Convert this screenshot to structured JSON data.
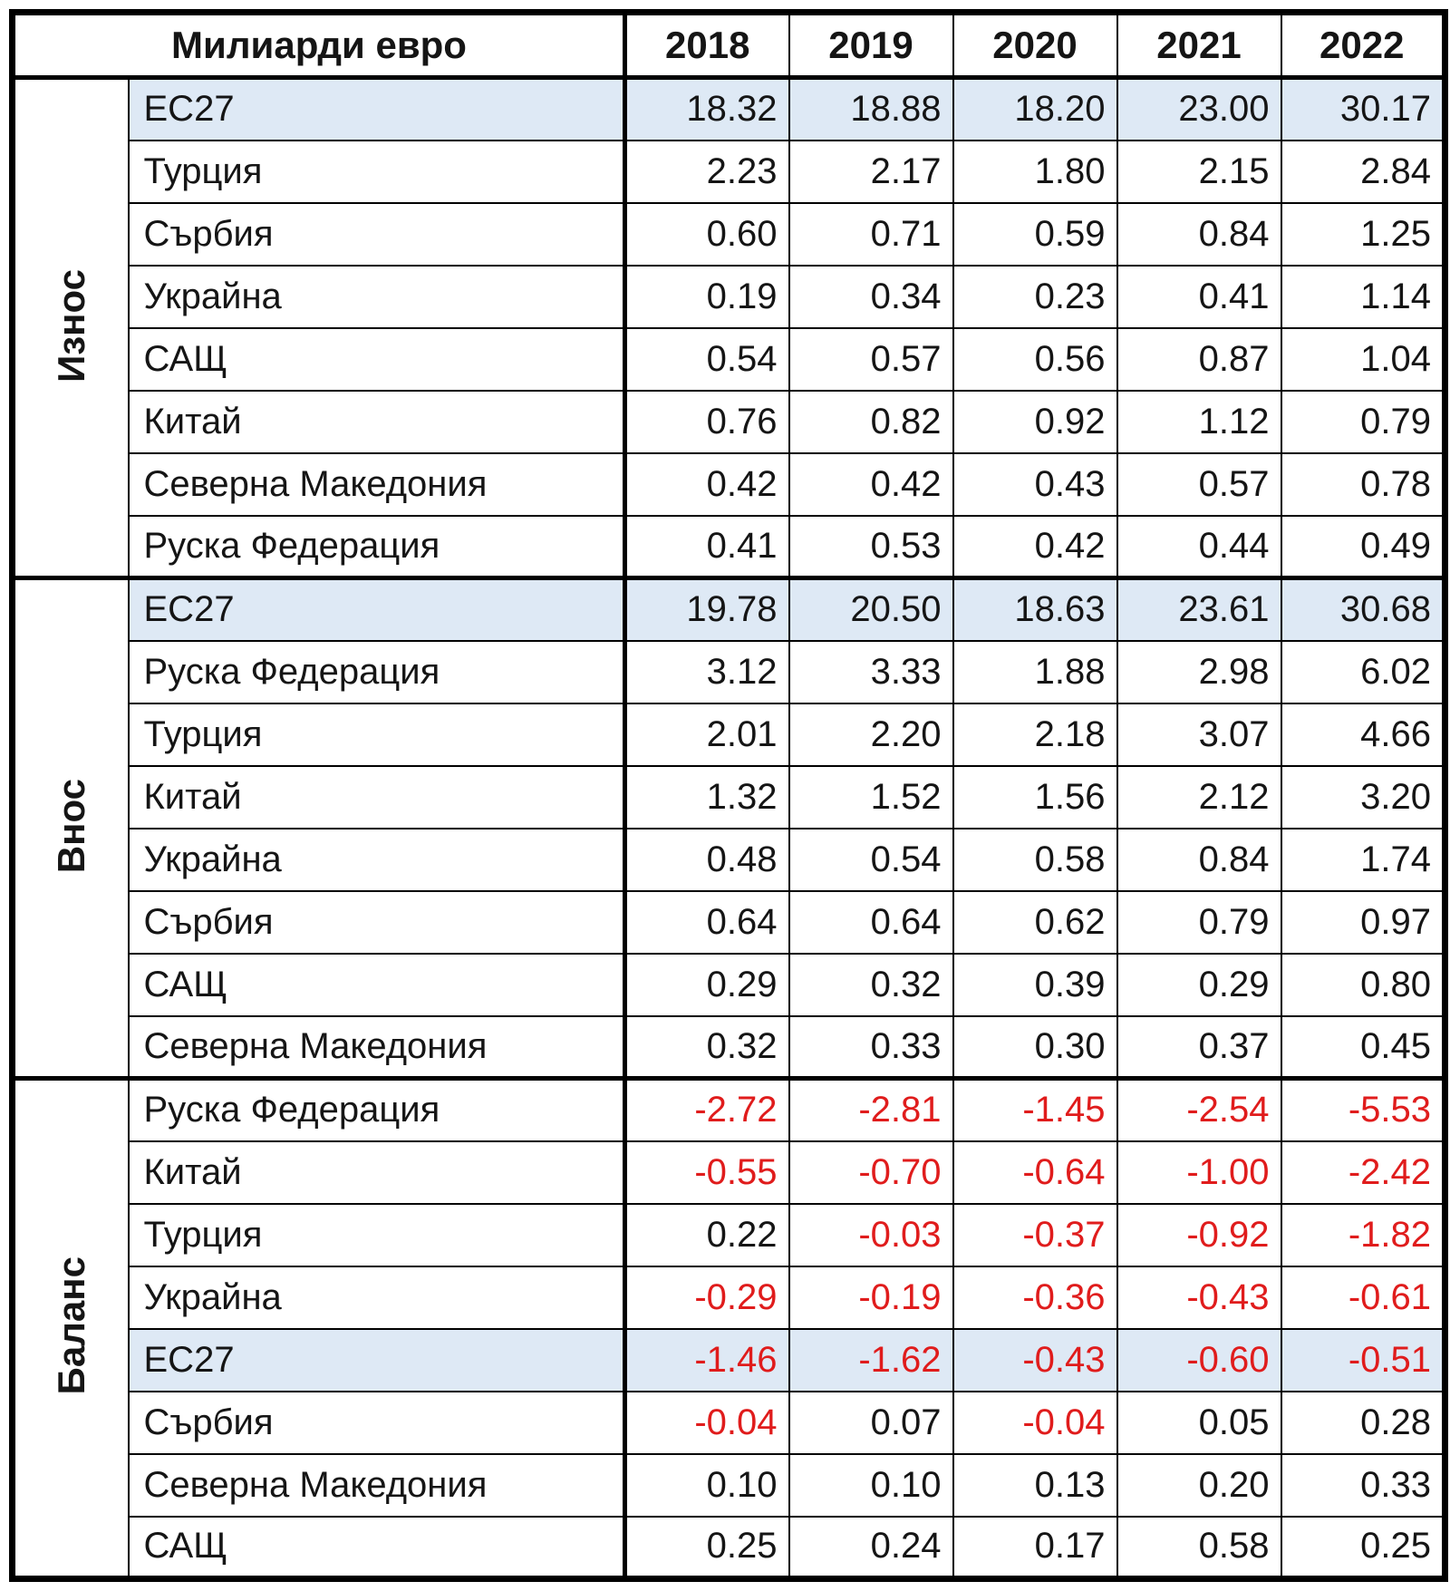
{
  "table": {
    "unit_label": "Милиарди евро",
    "years": [
      "2018",
      "2019",
      "2020",
      "2021",
      "2022"
    ],
    "colors": {
      "highlight_row_bg": "#DEE9F5",
      "negative_value_text": "#E01C1C",
      "border": "#000000"
    },
    "sections": [
      {
        "label": "Износ",
        "rows": [
          {
            "country": "ЕС27",
            "highlight": true,
            "values": [
              "18.32",
              "18.88",
              "18.20",
              "23.00",
              "30.17"
            ]
          },
          {
            "country": "Турция",
            "highlight": false,
            "values": [
              "2.23",
              "2.17",
              "1.80",
              "2.15",
              "2.84"
            ]
          },
          {
            "country": "Сърбия",
            "highlight": false,
            "values": [
              "0.60",
              "0.71",
              "0.59",
              "0.84",
              "1.25"
            ]
          },
          {
            "country": "Украйна",
            "highlight": false,
            "values": [
              "0.19",
              "0.34",
              "0.23",
              "0.41",
              "1.14"
            ]
          },
          {
            "country": "САЩ",
            "highlight": false,
            "values": [
              "0.54",
              "0.57",
              "0.56",
              "0.87",
              "1.04"
            ]
          },
          {
            "country": "Китай",
            "highlight": false,
            "values": [
              "0.76",
              "0.82",
              "0.92",
              "1.12",
              "0.79"
            ]
          },
          {
            "country": "Северна Македония",
            "highlight": false,
            "values": [
              "0.42",
              "0.42",
              "0.43",
              "0.57",
              "0.78"
            ]
          },
          {
            "country": "Руска Федерация",
            "highlight": false,
            "values": [
              "0.41",
              "0.53",
              "0.42",
              "0.44",
              "0.49"
            ]
          }
        ]
      },
      {
        "label": "Внос",
        "rows": [
          {
            "country": "ЕС27",
            "highlight": true,
            "values": [
              "19.78",
              "20.50",
              "18.63",
              "23.61",
              "30.68"
            ]
          },
          {
            "country": "Руска Федерация",
            "highlight": false,
            "values": [
              "3.12",
              "3.33",
              "1.88",
              "2.98",
              "6.02"
            ]
          },
          {
            "country": "Турция",
            "highlight": false,
            "values": [
              "2.01",
              "2.20",
              "2.18",
              "3.07",
              "4.66"
            ]
          },
          {
            "country": "Китай",
            "highlight": false,
            "values": [
              "1.32",
              "1.52",
              "1.56",
              "2.12",
              "3.20"
            ]
          },
          {
            "country": "Украйна",
            "highlight": false,
            "values": [
              "0.48",
              "0.54",
              "0.58",
              "0.84",
              "1.74"
            ]
          },
          {
            "country": "Сърбия",
            "highlight": false,
            "values": [
              "0.64",
              "0.64",
              "0.62",
              "0.79",
              "0.97"
            ]
          },
          {
            "country": "САЩ",
            "highlight": false,
            "values": [
              "0.29",
              "0.32",
              "0.39",
              "0.29",
              "0.80"
            ]
          },
          {
            "country": "Северна Македония",
            "highlight": false,
            "values": [
              "0.32",
              "0.33",
              "0.30",
              "0.37",
              "0.45"
            ]
          }
        ]
      },
      {
        "label": "Баланс",
        "rows": [
          {
            "country": "Руска Федерация",
            "highlight": false,
            "values": [
              "-2.72",
              "-2.81",
              "-1.45",
              "-2.54",
              "-5.53"
            ]
          },
          {
            "country": "Китай",
            "highlight": false,
            "values": [
              "-0.55",
              "-0.70",
              "-0.64",
              "-1.00",
              "-2.42"
            ]
          },
          {
            "country": "Турция",
            "highlight": false,
            "values": [
              "0.22",
              "-0.03",
              "-0.37",
              "-0.92",
              "-1.82"
            ]
          },
          {
            "country": "Украйна",
            "highlight": false,
            "values": [
              "-0.29",
              "-0.19",
              "-0.36",
              "-0.43",
              "-0.61"
            ]
          },
          {
            "country": "ЕС27",
            "highlight": true,
            "values": [
              "-1.46",
              "-1.62",
              "-0.43",
              "-0.60",
              "-0.51"
            ]
          },
          {
            "country": "Сърбия",
            "highlight": false,
            "values": [
              "-0.04",
              "0.07",
              "-0.04",
              "0.05",
              "0.28"
            ]
          },
          {
            "country": "Северна Македония",
            "highlight": false,
            "values": [
              "0.10",
              "0.10",
              "0.13",
              "0.20",
              "0.33"
            ]
          },
          {
            "country": "САЩ",
            "highlight": false,
            "values": [
              "0.25",
              "0.24",
              "0.17",
              "0.58",
              "0.25"
            ]
          }
        ]
      }
    ]
  },
  "chart_data": {
    "type": "table",
    "title": "Милиарди евро",
    "columns": [
      "2018",
      "2019",
      "2020",
      "2021",
      "2022"
    ],
    "row_groups": [
      {
        "group": "Износ",
        "series": [
          {
            "name": "ЕС27",
            "values": [
              18.32,
              18.88,
              18.2,
              23.0,
              30.17
            ]
          },
          {
            "name": "Турция",
            "values": [
              2.23,
              2.17,
              1.8,
              2.15,
              2.84
            ]
          },
          {
            "name": "Сърбия",
            "values": [
              0.6,
              0.71,
              0.59,
              0.84,
              1.25
            ]
          },
          {
            "name": "Украйна",
            "values": [
              0.19,
              0.34,
              0.23,
              0.41,
              1.14
            ]
          },
          {
            "name": "САЩ",
            "values": [
              0.54,
              0.57,
              0.56,
              0.87,
              1.04
            ]
          },
          {
            "name": "Китай",
            "values": [
              0.76,
              0.82,
              0.92,
              1.12,
              0.79
            ]
          },
          {
            "name": "Северна Македония",
            "values": [
              0.42,
              0.42,
              0.43,
              0.57,
              0.78
            ]
          },
          {
            "name": "Руска Федерация",
            "values": [
              0.41,
              0.53,
              0.42,
              0.44,
              0.49
            ]
          }
        ]
      },
      {
        "group": "Внос",
        "series": [
          {
            "name": "ЕС27",
            "values": [
              19.78,
              20.5,
              18.63,
              23.61,
              30.68
            ]
          },
          {
            "name": "Руска Федерация",
            "values": [
              3.12,
              3.33,
              1.88,
              2.98,
              6.02
            ]
          },
          {
            "name": "Турция",
            "values": [
              2.01,
              2.2,
              2.18,
              3.07,
              4.66
            ]
          },
          {
            "name": "Китай",
            "values": [
              1.32,
              1.52,
              1.56,
              2.12,
              3.2
            ]
          },
          {
            "name": "Украйна",
            "values": [
              0.48,
              0.54,
              0.58,
              0.84,
              1.74
            ]
          },
          {
            "name": "Сърбия",
            "values": [
              0.64,
              0.64,
              0.62,
              0.79,
              0.97
            ]
          },
          {
            "name": "САЩ",
            "values": [
              0.29,
              0.32,
              0.39,
              0.29,
              0.8
            ]
          },
          {
            "name": "Северна Македония",
            "values": [
              0.32,
              0.33,
              0.3,
              0.37,
              0.45
            ]
          }
        ]
      },
      {
        "group": "Баланс",
        "series": [
          {
            "name": "Руска Федерация",
            "values": [
              -2.72,
              -2.81,
              -1.45,
              -2.54,
              -5.53
            ]
          },
          {
            "name": "Китай",
            "values": [
              -0.55,
              -0.7,
              -0.64,
              -1.0,
              -2.42
            ]
          },
          {
            "name": "Турция",
            "values": [
              0.22,
              -0.03,
              -0.37,
              -0.92,
              -1.82
            ]
          },
          {
            "name": "Украйна",
            "values": [
              -0.29,
              -0.19,
              -0.36,
              -0.43,
              -0.61
            ]
          },
          {
            "name": "ЕС27",
            "values": [
              -1.46,
              -1.62,
              -0.43,
              -0.6,
              -0.51
            ]
          },
          {
            "name": "Сърбия",
            "values": [
              -0.04,
              0.07,
              -0.04,
              0.05,
              0.28
            ]
          },
          {
            "name": "Северна Македония",
            "values": [
              0.1,
              0.1,
              0.13,
              0.2,
              0.33
            ]
          },
          {
            "name": "САЩ",
            "values": [
              0.25,
              0.24,
              0.17,
              0.58,
              0.25
            ]
          }
        ]
      }
    ]
  }
}
